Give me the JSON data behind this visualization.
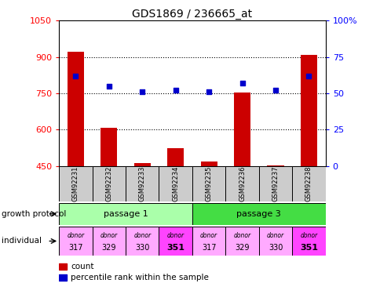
{
  "title": "GDS1869 / 236665_at",
  "samples": [
    "GSM92231",
    "GSM92232",
    "GSM92233",
    "GSM92234",
    "GSM92235",
    "GSM92236",
    "GSM92237",
    "GSM92238"
  ],
  "count_values": [
    920,
    607,
    463,
    525,
    468,
    755,
    453,
    910
  ],
  "percentile_values": [
    62,
    55,
    51,
    52,
    51,
    57,
    52,
    62
  ],
  "ylim_left": [
    450,
    1050
  ],
  "ylim_right": [
    0,
    100
  ],
  "yticks_left": [
    450,
    600,
    750,
    900,
    1050
  ],
  "yticks_right": [
    0,
    25,
    50,
    75,
    100
  ],
  "bar_color": "#cc0000",
  "dot_color": "#0000cc",
  "passage1_color": "#aaffaa",
  "passage3_color": "#44dd44",
  "donor_colors_light": "#ffaaff",
  "donor_colors_bold": "#ff44ff",
  "bold_donor": "351",
  "donors": [
    "317",
    "329",
    "330",
    "351",
    "317",
    "329",
    "330",
    "351"
  ],
  "passages": [
    [
      "passage 1",
      0,
      3
    ],
    [
      "passage 3",
      4,
      7
    ]
  ],
  "legend_bar_label": "count",
  "legend_dot_label": "percentile rank within the sample",
  "xlabel_growth": "growth protocol",
  "xlabel_individual": "individual",
  "sample_bg": "#cccccc"
}
